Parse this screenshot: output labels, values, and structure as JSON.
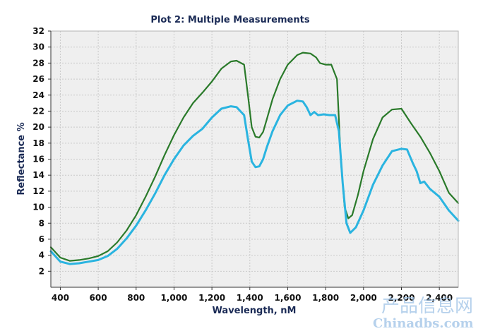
{
  "chart_data": {
    "type": "line",
    "title": "Plot 2: Multiple Measurements",
    "xlabel": "Wavelength, nM",
    "ylabel": "Reflectance %",
    "xlim": [
      350,
      2500
    ],
    "ylim": [
      0,
      32
    ],
    "grid": true,
    "legend": "none",
    "x_ticks": [
      400,
      600,
      800,
      1000,
      1200,
      1400,
      1600,
      1800,
      2000,
      2200,
      2400
    ],
    "x_tick_labels": [
      "400",
      "600",
      "800",
      "1,000",
      "1,200",
      "1,400",
      "1,600",
      "1,800",
      "2,000",
      "2,200",
      "2,400"
    ],
    "y_ticks": [
      2,
      4,
      6,
      8,
      10,
      12,
      14,
      16,
      18,
      20,
      22,
      24,
      26,
      28,
      30,
      32
    ],
    "series": [
      {
        "color": "#2a7a2a",
        "x": [
          350,
          400,
          450,
          500,
          550,
          600,
          650,
          700,
          750,
          800,
          850,
          900,
          950,
          1000,
          1050,
          1100,
          1150,
          1200,
          1250,
          1300,
          1330,
          1370,
          1390,
          1410,
          1430,
          1450,
          1470,
          1490,
          1520,
          1560,
          1600,
          1650,
          1680,
          1720,
          1750,
          1770,
          1800,
          1830,
          1860,
          1880,
          1900,
          1920,
          1940,
          1970,
          2000,
          2050,
          2100,
          2150,
          2200,
          2250,
          2300,
          2350,
          2400,
          2450,
          2500
        ],
        "y": [
          5.0,
          3.7,
          3.3,
          3.4,
          3.6,
          3.9,
          4.5,
          5.6,
          7.1,
          9.0,
          11.3,
          13.8,
          16.5,
          19.0,
          21.2,
          23.0,
          24.3,
          25.7,
          27.3,
          28.2,
          28.3,
          27.8,
          24.0,
          20.0,
          18.8,
          18.7,
          19.4,
          21.0,
          23.5,
          26.0,
          27.8,
          29.0,
          29.3,
          29.2,
          28.7,
          28.0,
          27.8,
          27.8,
          26.0,
          16.0,
          10.0,
          8.6,
          9.0,
          11.5,
          14.5,
          18.5,
          21.2,
          22.2,
          22.3,
          20.5,
          18.8,
          16.8,
          14.5,
          11.8,
          10.5
        ]
      },
      {
        "color": "#2ab4e0",
        "x": [
          350,
          400,
          450,
          500,
          550,
          600,
          650,
          700,
          750,
          800,
          850,
          900,
          950,
          1000,
          1050,
          1100,
          1150,
          1200,
          1250,
          1300,
          1330,
          1370,
          1390,
          1410,
          1430,
          1450,
          1470,
          1490,
          1520,
          1560,
          1600,
          1650,
          1680,
          1700,
          1720,
          1740,
          1760,
          1790,
          1820,
          1850,
          1870,
          1890,
          1910,
          1930,
          1960,
          2000,
          2050,
          2100,
          2150,
          2200,
          2230,
          2260,
          2280,
          2300,
          2320,
          2350,
          2400,
          2450,
          2500
        ],
        "y": [
          4.5,
          3.2,
          2.9,
          3.0,
          3.2,
          3.4,
          3.9,
          4.8,
          6.1,
          7.7,
          9.6,
          11.7,
          14.0,
          16.0,
          17.7,
          18.9,
          19.8,
          21.2,
          22.3,
          22.6,
          22.5,
          21.5,
          18.5,
          15.7,
          15.0,
          15.1,
          16.0,
          17.5,
          19.5,
          21.5,
          22.7,
          23.3,
          23.2,
          22.5,
          21.5,
          21.9,
          21.5,
          21.6,
          21.5,
          21.5,
          19.5,
          13.0,
          8.0,
          6.8,
          7.5,
          9.6,
          12.8,
          15.2,
          17.0,
          17.3,
          17.2,
          15.5,
          14.5,
          13.0,
          13.2,
          12.3,
          11.3,
          9.6,
          8.3
        ]
      }
    ]
  },
  "watermark": {
    "line1": "产品信息网",
    "line2": "Chinadbs.com"
  }
}
